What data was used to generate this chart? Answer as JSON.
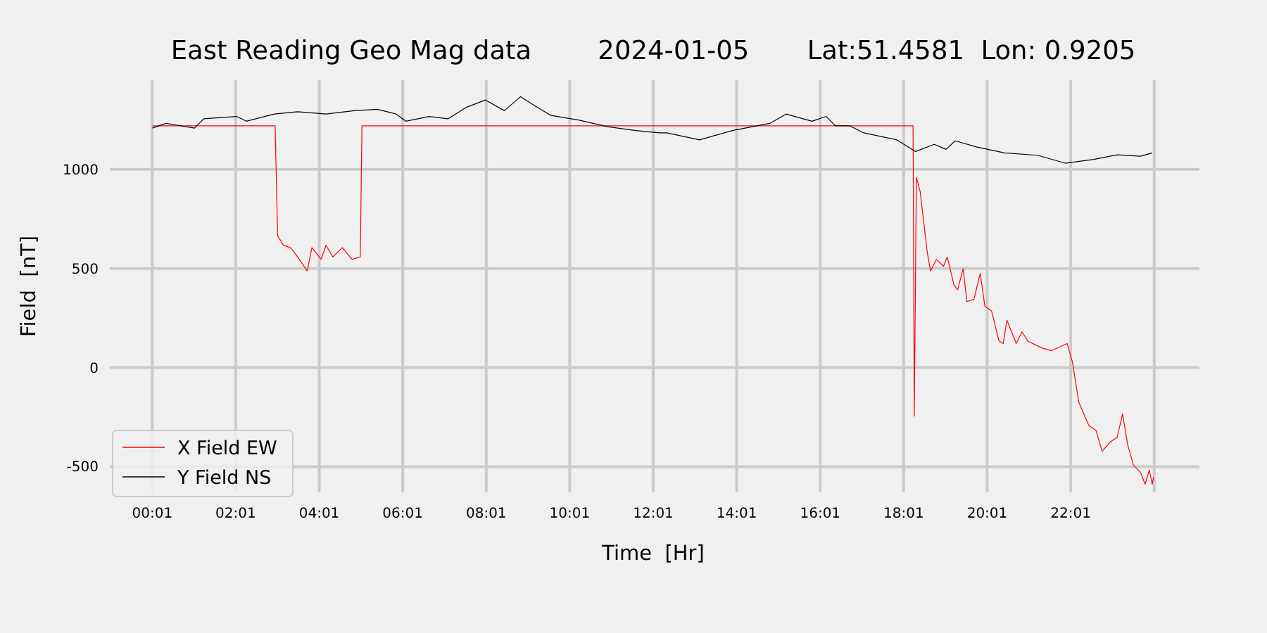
{
  "chart_data": {
    "type": "line",
    "title": "East Reading Geo Mag data        2024-01-05       Lat:51.4581  Lon: 0.9205",
    "xlabel": "Time  [Hr]",
    "ylabel": "Field  [nT]",
    "xlim": [
      -1,
      25.1
    ],
    "ylim": [
      -630,
      1450
    ],
    "xticks": [
      {
        "value": 0.0167,
        "label": "00:01"
      },
      {
        "value": 2.0167,
        "label": "02:01"
      },
      {
        "value": 4.0167,
        "label": "04:01"
      },
      {
        "value": 6.0167,
        "label": "06:01"
      },
      {
        "value": 8.0167,
        "label": "08:01"
      },
      {
        "value": 10.0167,
        "label": "10:01"
      },
      {
        "value": 12.0167,
        "label": "12:01"
      },
      {
        "value": 14.0167,
        "label": "14:01"
      },
      {
        "value": 16.0167,
        "label": "16:01"
      },
      {
        "value": 18.0167,
        "label": "18:01"
      },
      {
        "value": 20.0167,
        "label": "20:01"
      },
      {
        "value": 22.0167,
        "label": "22:01"
      },
      {
        "value": 24.0167,
        "label": null
      }
    ],
    "yticks": [
      -500,
      0,
      500,
      1000
    ],
    "grid": true,
    "legend": "bottom left",
    "series": [
      {
        "name": "X Field EW",
        "color": "#ff0000",
        "x": [
          0.02,
          2.96,
          3.02,
          3.16,
          3.33,
          3.5,
          3.73,
          3.84,
          4.06,
          4.18,
          4.34,
          4.57,
          4.8,
          5.0,
          5.04,
          18.24,
          18.27,
          18.32,
          18.41,
          18.58,
          18.66,
          18.8,
          18.97,
          19.06,
          19.22,
          19.31,
          19.44,
          19.53,
          19.7,
          19.85,
          19.96,
          20.12,
          20.3,
          20.4,
          20.49,
          20.71,
          20.85,
          20.99,
          21.33,
          21.56,
          21.93,
          22.06,
          22.21,
          22.45,
          22.62,
          22.77,
          22.96,
          23.13,
          23.26,
          23.38,
          23.52,
          23.69,
          23.8,
          23.9,
          23.97,
          24.0
        ],
        "values": [
          1220,
          1220,
          665,
          617,
          605,
          558,
          487,
          605,
          546,
          617,
          558,
          605,
          546,
          558,
          1220,
          1220,
          -246,
          960,
          889,
          582,
          487,
          546,
          511,
          558,
          416,
          392,
          499,
          333,
          345,
          475,
          310,
          286,
          133,
          121,
          239,
          121,
          180,
          133,
          98,
          85,
          121,
          26,
          -175,
          -293,
          -317,
          -423,
          -376,
          -352,
          -234,
          -388,
          -494,
          -530,
          -589,
          -518,
          -589,
          -553
        ]
      },
      {
        "name": "Y Field NS",
        "color": "#000000",
        "x": [
          0.02,
          0.35,
          1.03,
          1.25,
          2.04,
          2.27,
          2.94,
          3.5,
          4.18,
          4.85,
          5.41,
          5.86,
          6.09,
          6.65,
          7.1,
          7.55,
          8.0,
          8.45,
          8.84,
          9.23,
          9.57,
          10.25,
          10.92,
          11.6,
          12.16,
          12.34,
          13.13,
          13.91,
          14.81,
          15.2,
          15.82,
          16.16,
          16.38,
          16.72,
          17.06,
          17.85,
          18.3,
          18.75,
          19.03,
          19.25,
          19.76,
          20.43,
          21.22,
          21.89,
          22.57,
          23.13,
          23.69,
          23.97
        ],
        "values": [
          1208,
          1232,
          1208,
          1255,
          1267,
          1243,
          1279,
          1291,
          1279,
          1296,
          1303,
          1279,
          1243,
          1267,
          1255,
          1314,
          1350,
          1296,
          1367,
          1314,
          1272,
          1248,
          1215,
          1196,
          1184,
          1184,
          1149,
          1196,
          1232,
          1279,
          1243,
          1267,
          1220,
          1220,
          1184,
          1149,
          1090,
          1126,
          1101,
          1144,
          1113,
          1083,
          1071,
          1031,
          1050,
          1073,
          1066,
          1083
        ]
      }
    ]
  }
}
